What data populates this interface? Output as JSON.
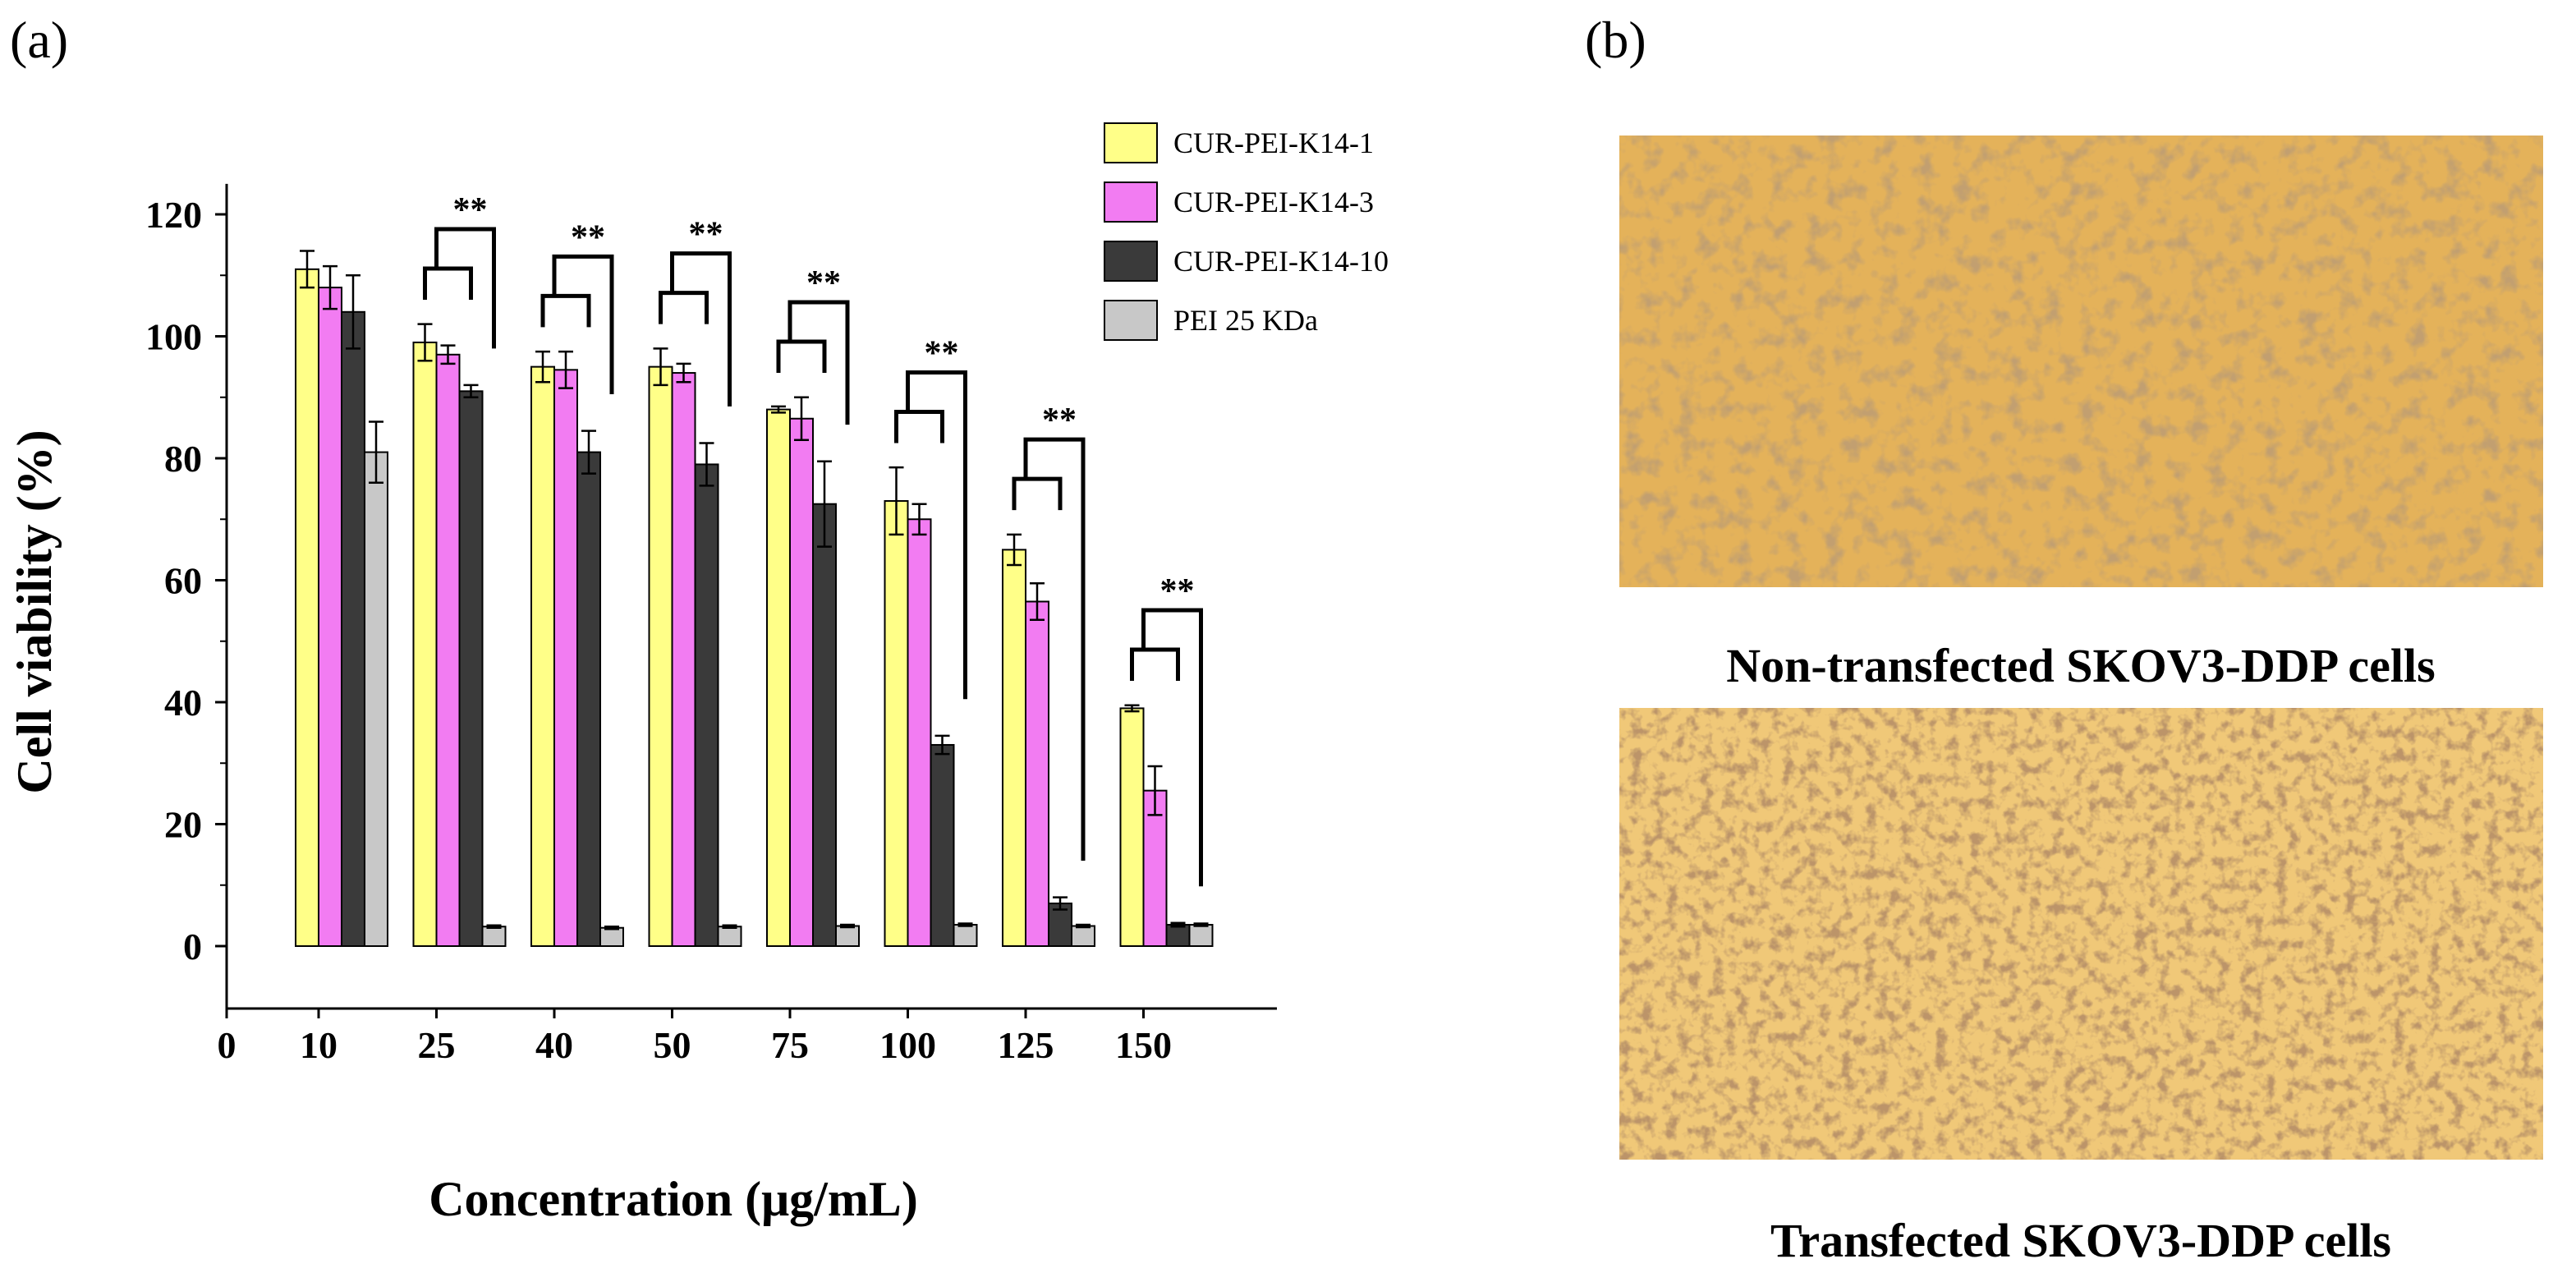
{
  "panels": {
    "a": "(a)",
    "b": "(b)"
  },
  "captions": {
    "top": "Non-transfected SKOV3-DDP cells",
    "bottom": "Transfected SKOV3-DDP cells"
  },
  "photo_colors": {
    "base": "#e4b25a",
    "light": "#f0c878",
    "cell": "#8a5a2a"
  },
  "chart_data": {
    "type": "bar",
    "title": "",
    "xlabel": "Concentration (μg/mL)",
    "ylabel": "Cell viability (%)",
    "ylim": [
      -10,
      125
    ],
    "yticks": [
      "0",
      "20",
      "40",
      "60",
      "80",
      "100",
      "120"
    ],
    "x_zero_label": "0",
    "categories": [
      "10",
      "25",
      "40",
      "50",
      "75",
      "100",
      "125",
      "150"
    ],
    "series": [
      {
        "name": "CUR-PEI-K14-1",
        "color": "#ffff88",
        "values": [
          111,
          99,
          95,
          95,
          88,
          73,
          65,
          39
        ],
        "errors": [
          3,
          3,
          2.5,
          3,
          0.5,
          5.5,
          2.5,
          0.5
        ]
      },
      {
        "name": "CUR-PEI-K14-3",
        "color": "#f27cf2",
        "values": [
          108,
          97,
          94.5,
          94,
          86.5,
          70,
          56.5,
          25.5
        ],
        "errors": [
          3.5,
          1.5,
          3,
          1.5,
          3.5,
          2.5,
          3,
          4
        ]
      },
      {
        "name": "CUR-PEI-K14-10",
        "color": "#3a3a3a",
        "values": [
          104,
          91,
          81,
          79,
          72.5,
          33,
          7,
          3.5
        ],
        "errors": [
          6,
          1,
          3.5,
          3.5,
          7,
          1.5,
          1,
          0.3
        ]
      },
      {
        "name": "PEI 25 KDa",
        "color": "#c8c8c8",
        "values": [
          81,
          3.2,
          3,
          3.2,
          3.3,
          3.5,
          3.3,
          3.5
        ],
        "errors": [
          5,
          0.2,
          0.2,
          0.2,
          0.2,
          0.2,
          0.2,
          0.2
        ]
      }
    ],
    "significance": [
      "",
      "**",
      "**",
      "**",
      "**",
      "**",
      "**",
      "**"
    ],
    "legend_position": "top-right",
    "grid": false
  }
}
